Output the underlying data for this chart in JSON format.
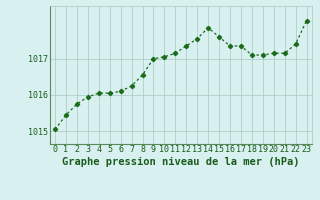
{
  "x": [
    0,
    1,
    2,
    3,
    4,
    5,
    6,
    7,
    8,
    9,
    10,
    11,
    12,
    13,
    14,
    15,
    16,
    17,
    18,
    19,
    20,
    21,
    22,
    23
  ],
  "y": [
    1015.05,
    1015.45,
    1015.75,
    1015.95,
    1016.05,
    1016.05,
    1016.1,
    1016.25,
    1016.55,
    1017.0,
    1017.05,
    1017.15,
    1017.35,
    1017.55,
    1017.85,
    1017.6,
    1017.35,
    1017.35,
    1017.1,
    1017.1,
    1017.15,
    1017.15,
    1017.4,
    1018.05
  ],
  "line_color": "#1a6b1a",
  "marker": "D",
  "markersize": 2.2,
  "linewidth": 0.9,
  "bg_color": "#d8f0f0",
  "grid_color": "#a8c8c0",
  "title": "Graphe pression niveau de la mer (hPa)",
  "title_fontsize": 7.5,
  "title_color": "#1a5c1a",
  "ylabel_ticks": [
    1015,
    1016,
    1017
  ],
  "ylim": [
    1014.65,
    1018.45
  ],
  "xlim": [
    -0.5,
    23.5
  ],
  "tick_fontsize": 6.0,
  "tick_color": "#1a5c1a",
  "xtick_labels": [
    "0",
    "1",
    "2",
    "3",
    "4",
    "5",
    "6",
    "7",
    "8",
    "9",
    "10",
    "11",
    "12",
    "13",
    "14",
    "15",
    "16",
    "17",
    "18",
    "19",
    "20",
    "21",
    "22",
    "23"
  ]
}
